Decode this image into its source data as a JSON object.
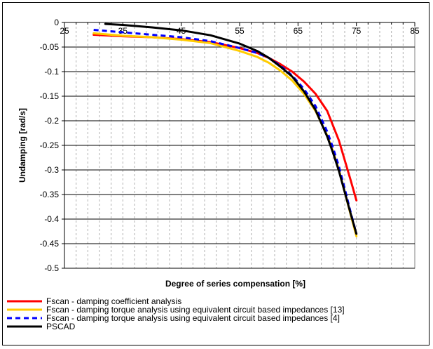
{
  "chart_data": {
    "type": "line",
    "title": "",
    "xlabel": "Degree of series compensation [%]",
    "ylabel": "Undamping [rad/s]",
    "xlim": [
      25,
      85
    ],
    "ylim": [
      -0.5,
      0
    ],
    "x_ticks": [
      "25",
      "35",
      "45",
      "55",
      "65",
      "75",
      "85"
    ],
    "y_ticks": [
      "0",
      "-0.05",
      "-0.1",
      "-0.15",
      "-0.2",
      "-0.25",
      "-0.3",
      "-0.35",
      "-0.4",
      "-0.45",
      "-0.5"
    ],
    "grid": "horizontal major, vertical dashed minor",
    "legend_position": "bottom",
    "series": [
      {
        "name": "Fscan - damping coefficient analysis",
        "color": "#ff0000",
        "dash": "solid",
        "x": [
          30,
          35,
          40,
          45,
          50,
          55,
          58,
          60,
          62,
          64,
          66,
          68,
          70,
          72,
          73,
          74,
          75
        ],
        "y": [
          -0.025,
          -0.028,
          -0.03,
          -0.034,
          -0.04,
          -0.052,
          -0.062,
          -0.072,
          -0.085,
          -0.1,
          -0.12,
          -0.145,
          -0.18,
          -0.24,
          -0.28,
          -0.32,
          -0.362
        ]
      },
      {
        "name": "Fscan - damping torque analysis using equivalent circuit based impedances [13]",
        "color": "#ffcc00",
        "dash": "solid",
        "x": [
          30,
          35,
          40,
          45,
          50,
          55,
          58,
          60,
          62,
          64,
          66,
          68,
          70,
          71,
          72,
          73,
          74,
          75
        ],
        "y": [
          -0.022,
          -0.027,
          -0.03,
          -0.035,
          -0.042,
          -0.058,
          -0.07,
          -0.082,
          -0.098,
          -0.118,
          -0.145,
          -0.18,
          -0.23,
          -0.262,
          -0.3,
          -0.345,
          -0.39,
          -0.435
        ]
      },
      {
        "name": "Fscan - damping torque analysis using equivalent circuit based impedances [4]",
        "color": "#0000ff",
        "dash": "dashed",
        "x": [
          30,
          35,
          40,
          45,
          50,
          55,
          58,
          60,
          62,
          64,
          66,
          68,
          70,
          71,
          72,
          73,
          74,
          75
        ],
        "y": [
          -0.015,
          -0.02,
          -0.025,
          -0.03,
          -0.038,
          -0.052,
          -0.062,
          -0.072,
          -0.088,
          -0.108,
          -0.135,
          -0.17,
          -0.222,
          -0.255,
          -0.293,
          -0.338,
          -0.385,
          -0.43
        ]
      },
      {
        "name": "PSCAD",
        "color": "#000000",
        "dash": "solid",
        "x": [
          32,
          35,
          40,
          45,
          50,
          55,
          58,
          60,
          62,
          64,
          66,
          68,
          70,
          71,
          72,
          73,
          74,
          75
        ],
        "y": [
          -0.003,
          -0.005,
          -0.01,
          -0.016,
          -0.026,
          -0.043,
          -0.058,
          -0.072,
          -0.09,
          -0.11,
          -0.14,
          -0.178,
          -0.232,
          -0.265,
          -0.302,
          -0.345,
          -0.388,
          -0.43
        ]
      }
    ]
  }
}
